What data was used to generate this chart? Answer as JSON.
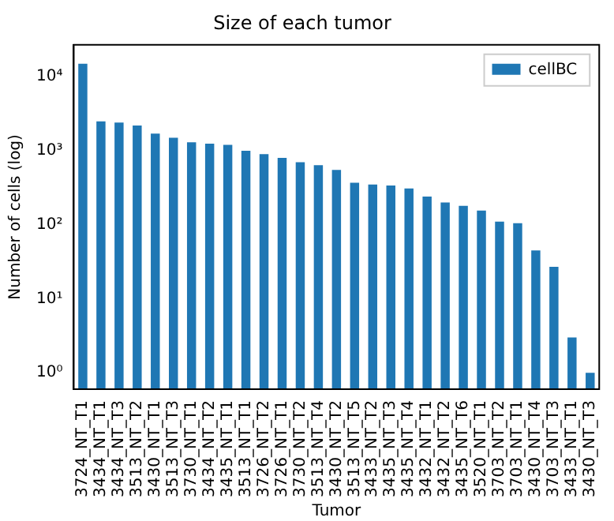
{
  "chart_data": {
    "type": "bar",
    "title": "Size of each tumor",
    "xlabel": "Tumor",
    "ylabel": "Number of cells (log)",
    "categories": [
      "3724_NT_T1",
      "3434_NT_T1",
      "3434_NT_T3",
      "3513_NT_T2",
      "3430_NT_T1",
      "3513_NT_T3",
      "3730_NT_T1",
      "3434_NT_T2",
      "3435_NT_T1",
      "3513_NT_T1",
      "3726_NT_T2",
      "3726_NT_T1",
      "3730_NT_T2",
      "3513_NT_T4",
      "3430_NT_T2",
      "3513_NT_T5",
      "3433_NT_T2",
      "3435_NT_T3",
      "3435_NT_T4",
      "3432_NT_T1",
      "3432_NT_T2",
      "3435_NT_T6",
      "3520_NT_T1",
      "3703_NT_T2",
      "3703_NT_T1",
      "3430_NT_T4",
      "3703_NT_T3",
      "3433_NT_T1",
      "3430_NT_T3"
    ],
    "series": [
      {
        "name": "cellBC",
        "color": "#1f77b4",
        "values": [
          15000,
          2500,
          2400,
          2200,
          1700,
          1500,
          1300,
          1250,
          1200,
          1000,
          900,
          800,
          700,
          640,
          550,
          370,
          350,
          340,
          310,
          240,
          200,
          180,
          155,
          110,
          105,
          45,
          27,
          3,
          1
        ]
      }
    ],
    "ylim": [
      0.6,
      27000
    ],
    "yticks": [
      {
        "value": 1,
        "label": "10⁰"
      },
      {
        "value": 10,
        "label": "10¹"
      },
      {
        "value": 100,
        "label": "10²"
      },
      {
        "value": 1000,
        "label": "10³"
      },
      {
        "value": 10000,
        "label": "10⁴"
      }
    ],
    "log": "y",
    "grid": false,
    "legend": "top right"
  }
}
